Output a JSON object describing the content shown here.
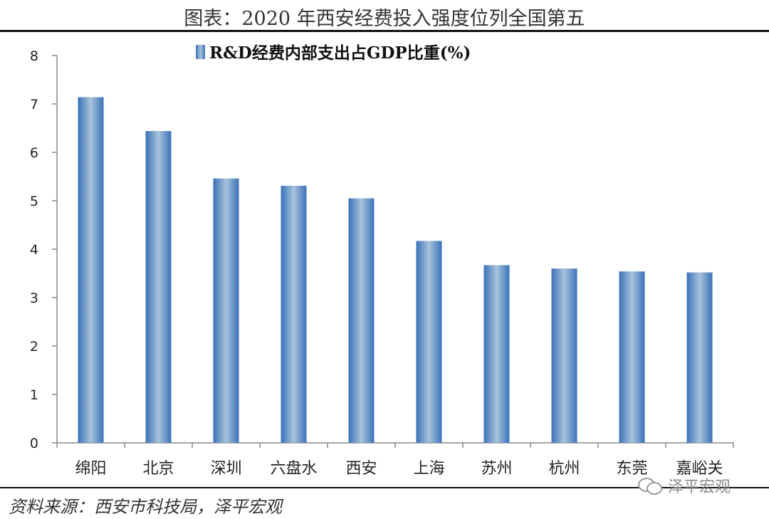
{
  "header": {
    "title": "图表：2020 年西安经费投入强度位列全国第五"
  },
  "footer": {
    "source": "资料来源：西安市科技局，泽平宏观",
    "watermark": "泽平宏观"
  },
  "colors": {
    "bar_edge": "#3a72b8",
    "bar_center": "#a9c3dc",
    "axis": "#888888"
  },
  "chart_data": {
    "type": "bar",
    "title": "",
    "xlabel": "",
    "ylabel": "",
    "legend": {
      "position": "top-center"
    },
    "categories": [
      "绵阳",
      "北京",
      "深圳",
      "六盘水",
      "西安",
      "上海",
      "苏州",
      "杭州",
      "东莞",
      "嘉峪关"
    ],
    "series": [
      {
        "name": "R&D经费内部支出占GDP比重(%)",
        "values": [
          7.14,
          6.44,
          5.46,
          5.31,
          5.05,
          4.17,
          3.67,
          3.6,
          3.54,
          3.52
        ]
      }
    ],
    "ylim": [
      0,
      8
    ],
    "yticks": [
      0,
      1,
      2,
      3,
      4,
      5,
      6,
      7,
      8
    ],
    "grid": false
  }
}
